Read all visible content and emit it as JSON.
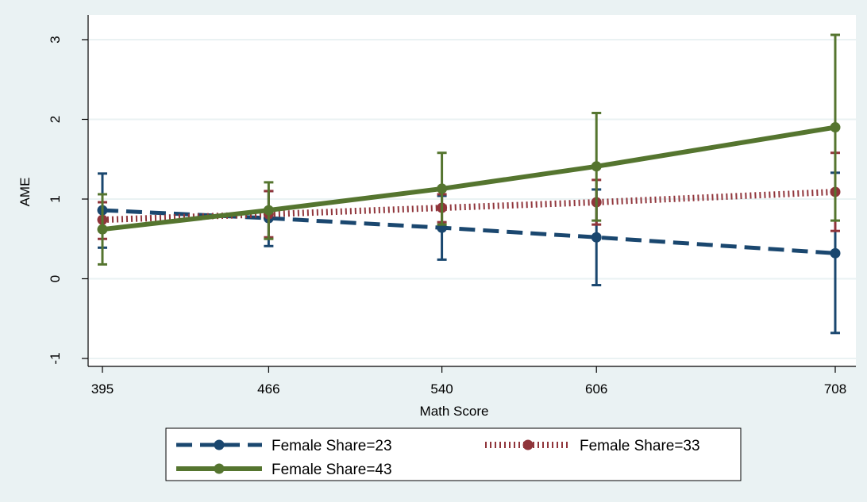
{
  "chart_data": {
    "type": "line",
    "title": "",
    "xlabel": "Math Score",
    "ylabel": "AME",
    "x": [
      395,
      466,
      540,
      606,
      708
    ],
    "x_tick_labels": [
      "395",
      "466",
      "540",
      "606",
      "708"
    ],
    "y_ticks": [
      -1,
      0,
      1,
      2,
      3
    ],
    "y_tick_labels": [
      "-1",
      "0",
      "1",
      "2",
      "3"
    ],
    "xlim": [
      395,
      708
    ],
    "ylim": [
      -1,
      3
    ],
    "grid": "horizontal",
    "legend_position": "bottom",
    "series": [
      {
        "name": "Female Share=23",
        "color": "#1a476f",
        "line_style": "dash",
        "values": [
          0.86,
          0.76,
          0.64,
          0.52,
          0.32
        ],
        "ci_low": [
          0.39,
          0.41,
          0.24,
          -0.08,
          -0.68
        ],
        "ci_high": [
          1.32,
          1.1,
          1.04,
          1.12,
          1.33
        ]
      },
      {
        "name": "Female Share=33",
        "color": "#90353b",
        "line_style": "dotted",
        "values": [
          0.74,
          0.81,
          0.89,
          0.96,
          1.09
        ],
        "ci_low": [
          0.5,
          0.52,
          0.71,
          0.68,
          0.6
        ],
        "ci_high": [
          0.96,
          1.1,
          1.06,
          1.24,
          1.58
        ]
      },
      {
        "name": "Female Share=43",
        "color": "#55752f",
        "line_style": "solid",
        "values": [
          0.62,
          0.86,
          1.13,
          1.41,
          1.9
        ],
        "ci_low": [
          0.18,
          0.5,
          0.68,
          0.73,
          0.73
        ],
        "ci_high": [
          1.06,
          1.21,
          1.58,
          2.08,
          3.06
        ]
      }
    ]
  }
}
